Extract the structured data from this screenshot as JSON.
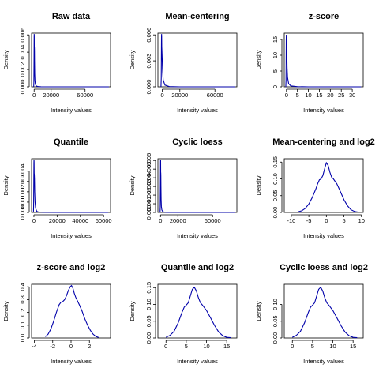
{
  "chart_data": [
    {
      "type": "line",
      "title": "Raw data",
      "xlabel": "Intensity values",
      "ylabel": "Density",
      "xlim": [
        -3000,
        90000
      ],
      "ylim": [
        0,
        0.0062
      ],
      "xticks": [
        0,
        20000,
        60000
      ],
      "xticklabels": [
        "0",
        "20000",
        "60000"
      ],
      "yticks": [
        0,
        0.002,
        0.004,
        0.006
      ],
      "yticklabels": [
        "0.000",
        "0.002",
        "0.004",
        "0.006"
      ],
      "series": [
        {
          "color": "#0000aa",
          "x": [
            -500,
            -300,
            -100,
            0,
            80,
            150,
            220,
            300,
            400,
            500,
            700,
            1000,
            1500,
            2500,
            4000,
            8000,
            20000,
            40000,
            88000
          ],
          "y": [
            0,
            0.0006,
            0.0035,
            0.0058,
            0.0061,
            0.0059,
            0.0045,
            0.0046,
            0.0042,
            0.003,
            0.0015,
            0.0007,
            0.0003,
            0.0001,
            4e-05,
            1e-05,
            0,
            0,
            0
          ]
        }
      ]
    },
    {
      "type": "line",
      "title": "Mean-centering",
      "xlabel": "Intensity values",
      "ylabel": "Density",
      "xlim": [
        -5000,
        85000
      ],
      "ylim": [
        0,
        0.0062
      ],
      "xticks": [
        0,
        20000,
        60000
      ],
      "xticklabels": [
        "0",
        "20000",
        "60000"
      ],
      "yticks": [
        0,
        0.003,
        0.006
      ],
      "yticklabels": [
        "0.000",
        "0.003",
        "0.006"
      ],
      "series": [
        {
          "color": "#0000aa",
          "x": [
            -1500,
            -1200,
            -1000,
            -900,
            -800,
            -700,
            -600,
            -500,
            -200,
            300,
            1000,
            3000,
            8000,
            20000,
            40000,
            83000
          ],
          "y": [
            0,
            0.001,
            0.0045,
            0.0059,
            0.0061,
            0.0058,
            0.0046,
            0.0044,
            0.0035,
            0.002,
            0.0008,
            0.0002,
            3e-05,
            0,
            0,
            0
          ]
        }
      ]
    },
    {
      "type": "line",
      "title": "z-score",
      "xlabel": "Intensity values",
      "ylabel": "Density",
      "xlim": [
        -1,
        35
      ],
      "ylim": [
        0,
        17
      ],
      "xticks": [
        0,
        5,
        10,
        15,
        20,
        25,
        30
      ],
      "xticklabels": [
        "0",
        "5",
        "10",
        "15",
        "20",
        "25",
        "30"
      ],
      "yticks": [
        0,
        5,
        10,
        15
      ],
      "yticklabels": [
        "0",
        "5",
        "10",
        "15"
      ],
      "series": [
        {
          "color": "#0000aa",
          "x": [
            -0.3,
            -0.2,
            -0.15,
            -0.1,
            -0.05,
            0,
            0.05,
            0.1,
            0.2,
            0.3,
            0.5,
            1,
            2,
            5,
            10,
            20,
            34
          ],
          "y": [
            0,
            2,
            7,
            15,
            16.5,
            15,
            12,
            12.2,
            10,
            6,
            3,
            1,
            0.3,
            0.05,
            0,
            0,
            0
          ]
        }
      ]
    },
    {
      "type": "line",
      "title": "Quantile",
      "xlabel": "Intensity values",
      "ylabel": "Density",
      "xlim": [
        -2000,
        66000
      ],
      "ylim": [
        0,
        0.0052
      ],
      "xticks": [
        0,
        20000,
        40000,
        60000
      ],
      "xticklabels": [
        "0",
        "20000",
        "40000",
        "60000"
      ],
      "yticks": [
        0,
        0.001,
        0.002,
        0.003,
        0.004
      ],
      "yticklabels": [
        "0.000",
        "0.001",
        "0.002",
        "0.003",
        "0.004"
      ],
      "series": [
        {
          "color": "#0000aa",
          "x": [
            -400,
            -250,
            -100,
            0,
            80,
            160,
            250,
            350,
            500,
            700,
            1000,
            1500,
            2500,
            4000,
            8000,
            20000,
            40000,
            64000
          ],
          "y": [
            0,
            0.0006,
            0.003,
            0.0048,
            0.0051,
            0.0049,
            0.0038,
            0.0037,
            0.0033,
            0.002,
            0.001,
            0.0004,
            0.0001,
            4e-05,
            1e-05,
            0,
            0,
            0
          ]
        }
      ]
    },
    {
      "type": "line",
      "title": "Cyclic loess",
      "xlabel": "Intensity values",
      "ylabel": "Density",
      "xlim": [
        -3000,
        88000
      ],
      "ylim": [
        0,
        0.0062
      ],
      "xticks": [
        0,
        20000,
        60000
      ],
      "xticklabels": [
        "0",
        "20000",
        "60000"
      ],
      "yticks": [
        0,
        0.001,
        0.002,
        0.003,
        0.004,
        0.005,
        0.006
      ],
      "yticklabels": [
        "0.000",
        "0.001",
        "0.002",
        "0.003",
        "0.004",
        "0.005",
        "0.006"
      ],
      "series": [
        {
          "color": "#0000aa",
          "x": [
            -500,
            -300,
            -100,
            0,
            80,
            150,
            220,
            300,
            400,
            500,
            700,
            1000,
            1500,
            2500,
            4000,
            8000,
            20000,
            40000,
            86000
          ],
          "y": [
            0,
            0.0006,
            0.0035,
            0.0058,
            0.0061,
            0.0059,
            0.0045,
            0.0046,
            0.0042,
            0.003,
            0.0015,
            0.0007,
            0.0003,
            0.0001,
            4e-05,
            1e-05,
            0,
            0,
            0
          ]
        }
      ]
    },
    {
      "type": "line",
      "title": "Mean-centering and log2",
      "xlabel": "Intensity values",
      "ylabel": "Density",
      "xlim": [
        -12,
        10.5
      ],
      "ylim": [
        0,
        0.16
      ],
      "xticks": [
        -10,
        -5,
        0,
        5,
        10
      ],
      "xticklabels": [
        "-10",
        "-5",
        "0",
        "5",
        "10"
      ],
      "yticks": [
        0,
        0.05,
        0.1,
        0.15
      ],
      "yticklabels": [
        "0.00",
        "0.05",
        "0.10",
        "0.15"
      ],
      "series": [
        {
          "color": "#0000aa",
          "x": [
            -8,
            -7,
            -6,
            -5,
            -4,
            -3,
            -2.5,
            -2,
            -1.5,
            -1,
            -0.5,
            0,
            0.5,
            1,
            1.5,
            2,
            3,
            4,
            5,
            6,
            7,
            8,
            9
          ],
          "y": [
            0.002,
            0.005,
            0.012,
            0.025,
            0.045,
            0.07,
            0.085,
            0.097,
            0.1,
            0.11,
            0.13,
            0.148,
            0.14,
            0.12,
            0.105,
            0.1,
            0.085,
            0.062,
            0.038,
            0.02,
            0.008,
            0.003,
            0.001
          ]
        }
      ]
    },
    {
      "type": "line",
      "title": "z-score and log2",
      "xlabel": "Intensity values",
      "ylabel": "Density",
      "xlim": [
        -4.3,
        4.3
      ],
      "ylim": [
        0,
        0.42
      ],
      "xticks": [
        -4,
        -2,
        0,
        2
      ],
      "xticklabels": [
        "-4",
        "-2",
        "0",
        "2"
      ],
      "yticks": [
        0,
        0.1,
        0.2,
        0.3,
        0.4
      ],
      "yticklabels": [
        "0.0",
        "0.1",
        "0.2",
        "0.3",
        "0.4"
      ],
      "series": [
        {
          "color": "#0000aa",
          "x": [
            -2.8,
            -2.5,
            -2.2,
            -1.9,
            -1.6,
            -1.3,
            -1.1,
            -0.9,
            -0.7,
            -0.5,
            -0.3,
            -0.1,
            0.05,
            0.2,
            0.35,
            0.5,
            0.7,
            0.9,
            1.2,
            1.5,
            1.8,
            2.1,
            2.4,
            2.7,
            3
          ],
          "y": [
            0.01,
            0.03,
            0.07,
            0.13,
            0.2,
            0.26,
            0.28,
            0.285,
            0.3,
            0.33,
            0.37,
            0.4,
            0.41,
            0.39,
            0.35,
            0.32,
            0.29,
            0.26,
            0.21,
            0.15,
            0.1,
            0.06,
            0.03,
            0.012,
            0.004
          ]
        }
      ]
    },
    {
      "type": "line",
      "title": "Quantile and log2",
      "xlabel": "Intensity values",
      "ylabel": "Density",
      "xlim": [
        -2,
        17.5
      ],
      "ylim": [
        0,
        0.16
      ],
      "xticks": [
        0,
        5,
        10,
        15
      ],
      "xticklabels": [
        "0",
        "5",
        "10",
        "15"
      ],
      "yticks": [
        0,
        0.05,
        0.1,
        0.15
      ],
      "yticklabels": [
        "0.00",
        "0.05",
        "0.10",
        "0.15"
      ],
      "series": [
        {
          "color": "#0000aa",
          "x": [
            0,
            1,
            2,
            3,
            4,
            4.5,
            5,
            5.5,
            6,
            6.5,
            7,
            7.5,
            8,
            8.5,
            9,
            10,
            11,
            12,
            13,
            14,
            15,
            16
          ],
          "y": [
            0.002,
            0.008,
            0.02,
            0.045,
            0.078,
            0.092,
            0.098,
            0.105,
            0.125,
            0.145,
            0.151,
            0.14,
            0.12,
            0.105,
            0.098,
            0.082,
            0.06,
            0.037,
            0.018,
            0.007,
            0.002,
            0.001
          ]
        }
      ]
    },
    {
      "type": "line",
      "title": "Cyclic loess and log2",
      "xlabel": "Intensity values",
      "ylabel": "Density",
      "xlim": [
        -2,
        17.5
      ],
      "ylim": [
        0,
        0.16
      ],
      "xticks": [
        0,
        5,
        10,
        15
      ],
      "xticklabels": [
        "0",
        "5",
        "10",
        "15"
      ],
      "yticks": [
        0,
        0.05,
        0.1
      ],
      "yticklabels": [
        "0.00",
        "0.05",
        "0.10"
      ],
      "series": [
        {
          "color": "#0000aa",
          "x": [
            0,
            1,
            2,
            3,
            4,
            4.5,
            5,
            5.5,
            6,
            6.5,
            7,
            7.5,
            8,
            8.5,
            9,
            10,
            11,
            12,
            13,
            14,
            15,
            16
          ],
          "y": [
            0.002,
            0.008,
            0.02,
            0.045,
            0.078,
            0.092,
            0.098,
            0.105,
            0.125,
            0.145,
            0.151,
            0.14,
            0.12,
            0.105,
            0.098,
            0.082,
            0.06,
            0.037,
            0.018,
            0.007,
            0.002,
            0.001
          ]
        }
      ]
    }
  ]
}
